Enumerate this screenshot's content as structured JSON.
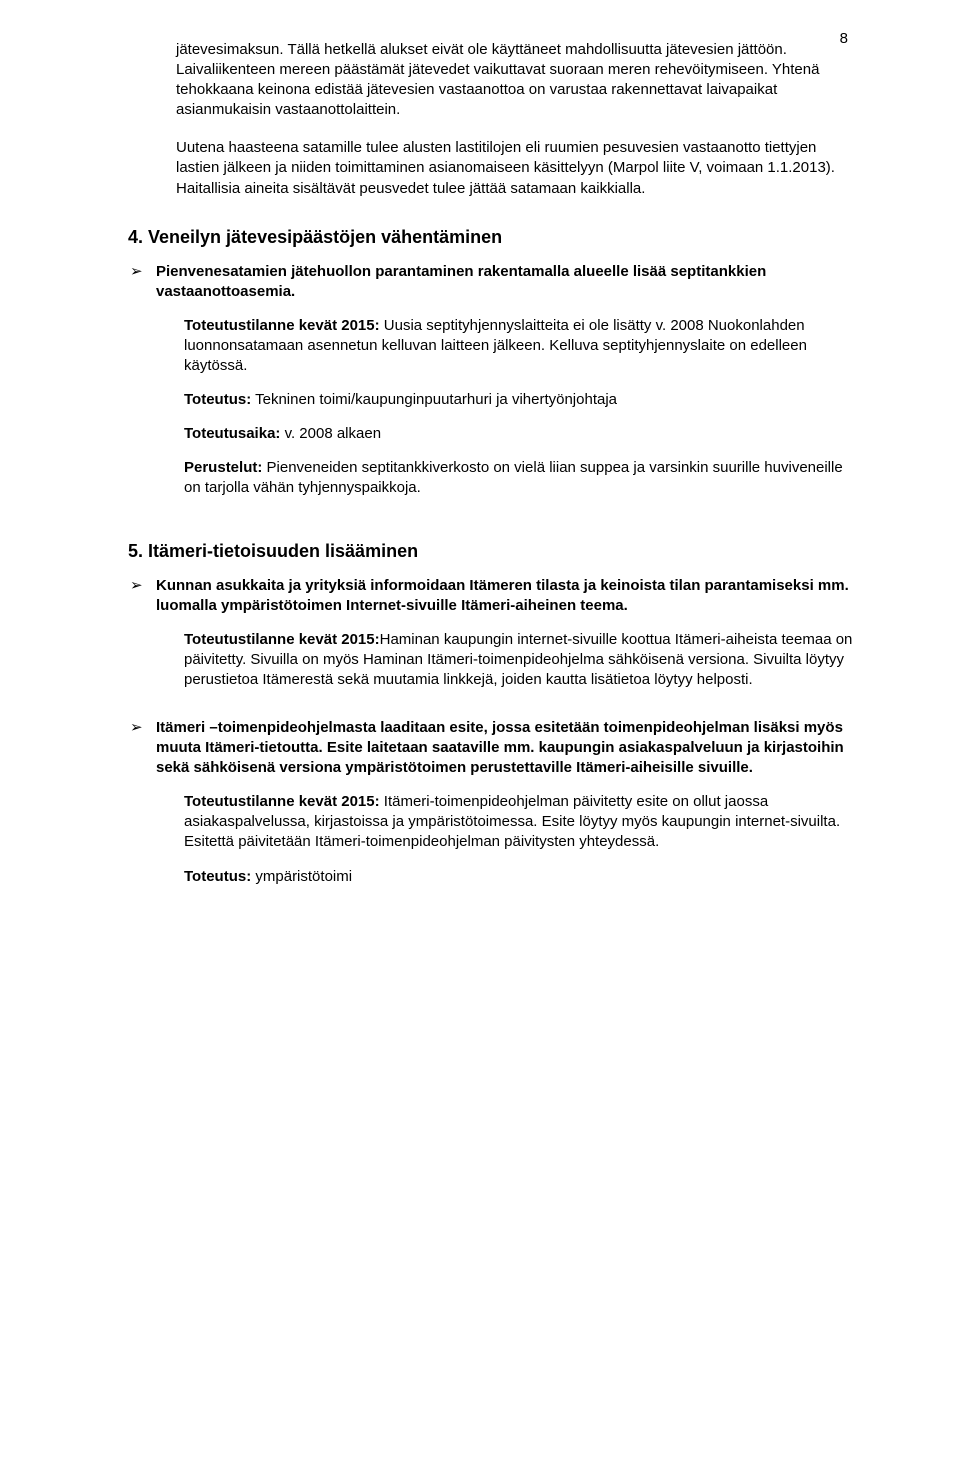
{
  "page_number": "8",
  "typography": {
    "body_fontsize_pt": 11,
    "heading_fontsize_pt": 13,
    "font_family": "Arial",
    "text_color": "#000000",
    "background_color": "#ffffff"
  },
  "paragraphs": {
    "p1": "jätevesimaksun. Tällä hetkellä alukset eivät ole käyttäneet mahdollisuutta jätevesien jättöön. Laivaliikenteen mereen päästämät jätevedet vaikuttavat suoraan meren rehevöitymiseen. Yhtenä tehokkaana keinona edistää jätevesien vastaanottoa on varustaa rakennettavat laivapaikat asianmukaisin vastaanottolaittein.",
    "p2": "Uutena haasteena satamille tulee alusten lastitilojen eli ruumien pesuvesien vastaanotto tiettyjen lastien jälkeen ja niiden toimittaminen asianomaiseen käsittelyyn (Marpol liite V, voimaan 1.1.2013). Haitallisia aineita sisältävät peusvedet tulee jättää satamaan kaikkialla."
  },
  "section4": {
    "heading": "4. Veneilyn jätevesipäästöjen vähentäminen",
    "bullet": {
      "title": "Pienvenesatamien jätehuollon parantaminen rakentamalla alueelle lisää septitankkien vastaanottoasemia.",
      "sub1_label": "Toteutustilanne kevät 2015:",
      "sub1_text": " Uusia septityhjennyslaitteita ei ole lisätty v. 2008 Nuokonlahden luonnonsatamaan asennetun kelluvan laitteen jälkeen. Kelluva septityhjennyslaite on edelleen käytössä.",
      "sub2_label": "Toteutus:",
      "sub2_text": " Tekninen toimi/kaupunginpuutarhuri ja vihertyönjohtaja",
      "sub3_label": "Toteutusaika:",
      "sub3_text": " v. 2008 alkaen",
      "sub4_label": "Perustelut:",
      "sub4_text": " Pienveneiden septitankkiverkosto on vielä liian suppea ja varsinkin suurille huviveneille on tarjolla vähän tyhjennyspaikkoja."
    }
  },
  "section5": {
    "heading": "5. Itämeri-tietoisuuden lisääminen",
    "bullet1": {
      "title": "Kunnan asukkaita ja yrityksiä informoidaan Itämeren tilasta ja keinoista tilan parantamiseksi mm. luomalla ympäristötoimen Internet-sivuille Itämeri-aiheinen teema.",
      "sub1_label": "Toteutustilanne kevät 2015:",
      "sub1_text": "Haminan kaupungin internet-sivuille koottua Itämeri-aiheista teemaa on päivitetty. Sivuilla on myös Haminan Itämeri-toimenpideohjelma sähköisenä versiona. Sivuilta löytyy perustietoa Itämerestä sekä muutamia linkkejä, joiden kautta lisätietoa löytyy helposti."
    },
    "bullet2": {
      "title": "Itämeri –toimenpideohjelmasta laaditaan esite, jossa esitetään toimenpideohjelman lisäksi myös muuta Itämeri-tietoutta. Esite laitetaan saataville mm. kaupungin asiakaspalveluun ja kirjastoihin sekä sähköisenä versiona ympäristötoimen perustettaville Itämeri-aiheisille sivuille.",
      "sub1_label": "Toteutustilanne kevät 2015:",
      "sub1_text": " Itämeri-toimenpideohjelman päivitetty esite on ollut jaossa asiakaspalvelussa, kirjastoissa ja ympäristötoimessa. Esite löytyy myös kaupungin internet-sivuilta. Esitettä päivitetään Itämeri-toimenpideohjelman päivitysten yhteydessä.",
      "sub2_label": "Toteutus:",
      "sub2_text": " ympäristötoimi"
    }
  }
}
